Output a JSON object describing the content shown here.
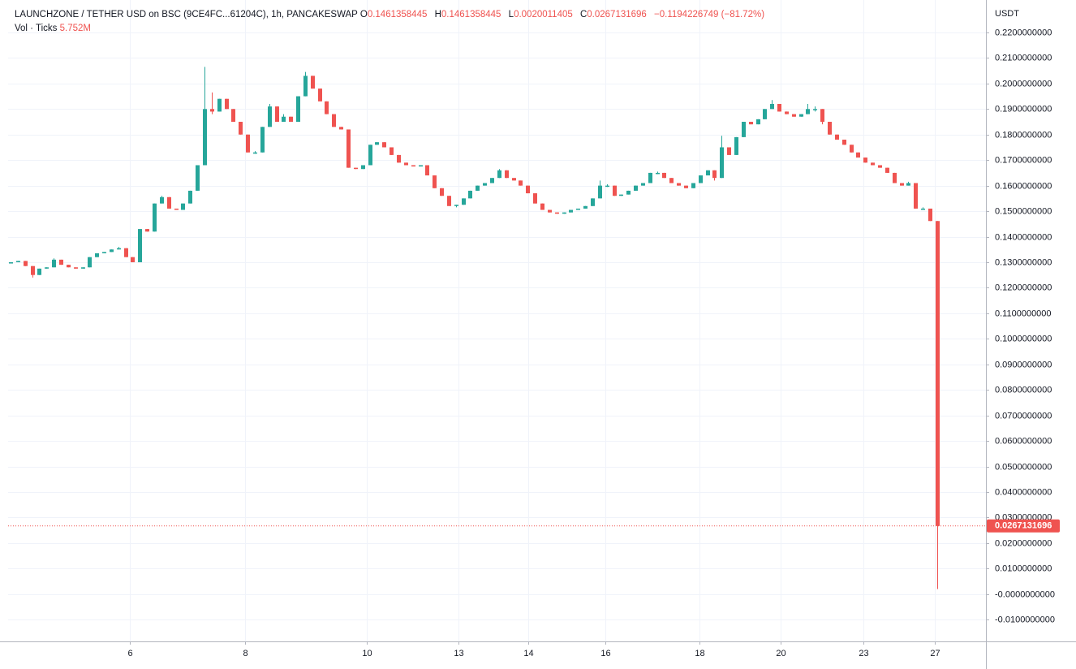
{
  "chart_data": {
    "type": "candlestick",
    "title": "LAUNCHZONE / TETHER USD on BSC (9CE4FC...61204C), 1h, PANCAKESWAP",
    "ohlc_labels": [
      "O",
      "H",
      "L",
      "C"
    ],
    "change": "−0.1194226749 (−81.72%)",
    "volume_label": "Vol · Ticks",
    "volume_value": "5.752M",
    "y_axis_label": "USDT",
    "up_color": "#26a69a",
    "down_color": "#ef5350",
    "grid": true,
    "open": [
      0.1295,
      0.13,
      0.1305,
      0.1285,
      0.125,
      0.1275,
      0.128,
      0.131,
      0.129,
      0.128,
      0.1275,
      0.128,
      0.132,
      0.1335,
      0.134,
      0.135,
      0.1355,
      0.132,
      0.13,
      0.143,
      0.142,
      0.153,
      0.1555,
      0.151,
      0.1505,
      0.153,
      0.158,
      0.168,
      0.19,
      0.189,
      0.194,
      0.19,
      0.185,
      0.18,
      0.173,
      0.173,
      0.183,
      0.191,
      0.185,
      0.187,
      0.185,
      0.195,
      0.203,
      0.198,
      0.193,
      0.188,
      0.183,
      0.182,
      0.167,
      0.1665,
      0.168,
      0.176,
      0.177,
      0.175,
      0.172,
      0.169,
      0.168,
      0.1675,
      0.168,
      0.164,
      0.159,
      0.156,
      0.152,
      0.1525,
      0.155,
      0.158,
      0.16,
      0.161,
      0.163,
      0.166,
      0.163,
      0.162,
      0.16,
      0.157,
      0.153,
      0.1505,
      0.1495,
      0.149,
      0.1495,
      0.1505,
      0.151,
      0.152,
      0.155,
      0.16,
      0.16,
      0.156,
      0.1565,
      0.158,
      0.16,
      0.161,
      0.165,
      0.165,
      0.163,
      0.161,
      0.16,
      0.159,
      0.161,
      0.164,
      0.166,
      0.163,
      0.175,
      0.172,
      0.179,
      0.185,
      0.184,
      0.186,
      0.19,
      0.192,
      0.189,
      0.188,
      0.187,
      0.188,
      0.19,
      0.19,
      0.185,
      0.18,
      0.178,
      0.176,
      0.173,
      0.171,
      0.169,
      0.168,
      0.167,
      0.165,
      0.161,
      0.16,
      0.161,
      0.151,
      0.151,
      0.1461358445
    ],
    "high": [
      0.13,
      0.1305,
      0.1305,
      0.1285,
      0.1275,
      0.128,
      0.1315,
      0.131,
      0.129,
      0.128,
      0.128,
      0.132,
      0.1335,
      0.134,
      0.135,
      0.136,
      0.1355,
      0.132,
      0.143,
      0.143,
      0.153,
      0.156,
      0.1555,
      0.151,
      0.153,
      0.158,
      0.168,
      0.2065,
      0.1965,
      0.194,
      0.194,
      0.19,
      0.185,
      0.18,
      0.1735,
      0.183,
      0.192,
      0.191,
      0.188,
      0.187,
      0.195,
      0.2045,
      0.203,
      0.198,
      0.193,
      0.188,
      0.183,
      0.182,
      0.167,
      0.168,
      0.176,
      0.177,
      0.177,
      0.175,
      0.172,
      0.169,
      0.168,
      0.168,
      0.168,
      0.164,
      0.159,
      0.156,
      0.1525,
      0.155,
      0.158,
      0.16,
      0.161,
      0.163,
      0.1665,
      0.166,
      0.163,
      0.162,
      0.16,
      0.157,
      0.153,
      0.1505,
      0.1495,
      0.1495,
      0.1505,
      0.151,
      0.152,
      0.155,
      0.162,
      0.1605,
      0.16,
      0.1565,
      0.158,
      0.16,
      0.161,
      0.165,
      0.1655,
      0.165,
      0.163,
      0.161,
      0.16,
      0.161,
      0.164,
      0.166,
      0.166,
      0.1795,
      0.175,
      0.179,
      0.185,
      0.185,
      0.186,
      0.19,
      0.1935,
      0.192,
      0.189,
      0.188,
      0.188,
      0.192,
      0.191,
      0.19,
      0.185,
      0.18,
      0.178,
      0.176,
      0.173,
      0.171,
      0.169,
      0.168,
      0.167,
      0.165,
      0.161,
      0.1615,
      0.161,
      0.1515,
      0.151,
      0.1461358445
    ],
    "low": [
      0.1295,
      0.13,
      0.1285,
      0.124,
      0.125,
      0.1275,
      0.128,
      0.129,
      0.128,
      0.1275,
      0.1275,
      0.128,
      0.132,
      0.1335,
      0.134,
      0.135,
      0.132,
      0.13,
      0.13,
      0.142,
      0.142,
      0.153,
      0.151,
      0.1505,
      0.1505,
      0.153,
      0.158,
      0.168,
      0.188,
      0.189,
      0.19,
      0.185,
      0.18,
      0.173,
      0.1725,
      0.173,
      0.183,
      0.185,
      0.185,
      0.185,
      0.185,
      0.195,
      0.198,
      0.193,
      0.188,
      0.183,
      0.182,
      0.167,
      0.1665,
      0.1665,
      0.168,
      0.176,
      0.175,
      0.172,
      0.169,
      0.168,
      0.1675,
      0.1675,
      0.164,
      0.159,
      0.156,
      0.152,
      0.1515,
      0.1525,
      0.155,
      0.158,
      0.16,
      0.161,
      0.163,
      0.163,
      0.162,
      0.16,
      0.157,
      0.153,
      0.1505,
      0.1495,
      0.149,
      0.149,
      0.1495,
      0.1505,
      0.151,
      0.152,
      0.155,
      0.1595,
      0.156,
      0.156,
      0.1565,
      0.158,
      0.16,
      0.161,
      0.1645,
      0.163,
      0.161,
      0.16,
      0.159,
      0.159,
      0.161,
      0.164,
      0.162,
      0.163,
      0.172,
      0.172,
      0.179,
      0.184,
      0.184,
      0.186,
      0.19,
      0.189,
      0.188,
      0.187,
      0.187,
      0.188,
      0.189,
      0.184,
      0.18,
      0.178,
      0.176,
      0.173,
      0.171,
      0.169,
      0.168,
      0.167,
      0.165,
      0.161,
      0.16,
      0.16,
      0.151,
      0.1505,
      0.1461358445,
      0.0020011405
    ],
    "close": [
      0.13,
      0.1305,
      0.1285,
      0.125,
      0.1275,
      0.128,
      0.131,
      0.129,
      0.128,
      0.1275,
      0.128,
      0.132,
      0.1335,
      0.134,
      0.135,
      0.1355,
      0.132,
      0.13,
      0.143,
      0.142,
      0.153,
      0.1555,
      0.151,
      0.1505,
      0.153,
      0.158,
      0.168,
      0.19,
      0.189,
      0.194,
      0.19,
      0.185,
      0.18,
      0.173,
      0.173,
      0.183,
      0.191,
      0.185,
      0.187,
      0.185,
      0.195,
      0.203,
      0.198,
      0.193,
      0.188,
      0.183,
      0.182,
      0.167,
      0.1665,
      0.168,
      0.176,
      0.177,
      0.175,
      0.172,
      0.169,
      0.168,
      0.1675,
      0.168,
      0.164,
      0.159,
      0.156,
      0.152,
      0.1525,
      0.155,
      0.158,
      0.16,
      0.161,
      0.163,
      0.166,
      0.163,
      0.162,
      0.16,
      0.157,
      0.153,
      0.1505,
      0.1495,
      0.149,
      0.1495,
      0.1505,
      0.151,
      0.152,
      0.155,
      0.16,
      0.16,
      0.156,
      0.1565,
      0.158,
      0.16,
      0.161,
      0.165,
      0.165,
      0.163,
      0.161,
      0.16,
      0.159,
      0.161,
      0.164,
      0.166,
      0.163,
      0.175,
      0.172,
      0.179,
      0.185,
      0.184,
      0.186,
      0.19,
      0.192,
      0.189,
      0.188,
      0.187,
      0.188,
      0.19,
      0.19,
      0.185,
      0.18,
      0.178,
      0.176,
      0.173,
      0.171,
      0.169,
      0.168,
      0.167,
      0.165,
      0.161,
      0.16,
      0.161,
      0.151,
      0.151,
      0.1461358445,
      0.0267131696
    ],
    "xlim": [
      -0.34,
      135.8
    ],
    "xticks": [
      {
        "value": 16.6,
        "label": "6"
      },
      {
        "value": 32.6,
        "label": "8"
      },
      {
        "value": 49.6,
        "label": "10"
      },
      {
        "value": 62.4,
        "label": "13"
      },
      {
        "value": 72.1,
        "label": "14"
      },
      {
        "value": 82.8,
        "label": "16"
      },
      {
        "value": 95.9,
        "label": "18"
      },
      {
        "value": 107.2,
        "label": "20"
      },
      {
        "value": 118.7,
        "label": "23"
      },
      {
        "value": 128.7,
        "label": "27"
      }
    ],
    "ylim": [
      -0.0185,
      0.2327
    ],
    "yticks": [
      {
        "value": 0.22,
        "label": "0.2200000000"
      },
      {
        "value": 0.21,
        "label": "0.2100000000"
      },
      {
        "value": 0.2,
        "label": "0.2000000000"
      },
      {
        "value": 0.19,
        "label": "0.1900000000"
      },
      {
        "value": 0.18,
        "label": "0.1800000000"
      },
      {
        "value": 0.17,
        "label": "0.1700000000"
      },
      {
        "value": 0.16,
        "label": "0.1600000000"
      },
      {
        "value": 0.15,
        "label": "0.1500000000"
      },
      {
        "value": 0.14,
        "label": "0.1400000000"
      },
      {
        "value": 0.13,
        "label": "0.1300000000"
      },
      {
        "value": 0.12,
        "label": "0.1200000000"
      },
      {
        "value": 0.11,
        "label": "0.1100000000"
      },
      {
        "value": 0.1,
        "label": "0.1000000000"
      },
      {
        "value": 0.09,
        "label": "0.0900000000"
      },
      {
        "value": 0.08,
        "label": "0.0800000000"
      },
      {
        "value": 0.07,
        "label": "0.0700000000"
      },
      {
        "value": 0.06,
        "label": "0.0600000000"
      },
      {
        "value": 0.05,
        "label": "0.0500000000"
      },
      {
        "value": 0.04,
        "label": "0.0400000000"
      },
      {
        "value": 0.03,
        "label": "0.0300000000"
      },
      {
        "value": 0.02,
        "label": "0.0200000000"
      },
      {
        "value": 0.01,
        "label": "0.0100000000"
      },
      {
        "value": 0,
        "label": "-0.0000000000"
      },
      {
        "value": -0.01,
        "label": "-0.0100000000"
      }
    ]
  }
}
